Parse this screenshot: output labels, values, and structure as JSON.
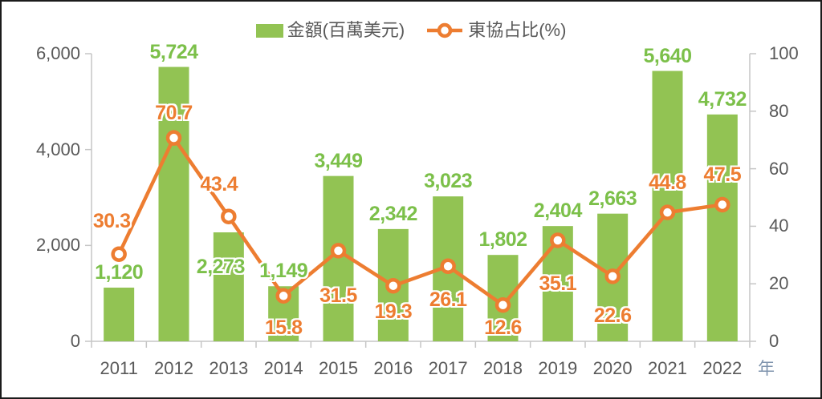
{
  "chart_data": {
    "type": "combo-bar-line",
    "title": "",
    "categories": [
      "2011",
      "2012",
      "2013",
      "2014",
      "2015",
      "2016",
      "2017",
      "2018",
      "2019",
      "2020",
      "2021",
      "2022"
    ],
    "series": [
      {
        "name": "金額(百萬美元)",
        "type": "bar",
        "axis": "left",
        "values": [
          1120,
          5724,
          2273,
          1149,
          3449,
          2342,
          3023,
          1802,
          2404,
          2663,
          5640,
          4732
        ],
        "labels": [
          "1,120",
          "5,724",
          "2,273",
          "1,149",
          "3,449",
          "2,342",
          "3,023",
          "1,802",
          "2,404",
          "2,663",
          "5,640",
          "4,732"
        ]
      },
      {
        "name": "東協占比(%)",
        "type": "line",
        "axis": "right",
        "values": [
          30.3,
          70.7,
          43.4,
          15.8,
          31.5,
          19.3,
          26.1,
          12.6,
          35.1,
          22.6,
          44.8,
          47.5
        ],
        "labels": [
          "30.3",
          "70.7",
          "43.4",
          "15.8",
          "31.5",
          "19.3",
          "26.1",
          "12.6",
          "35.1",
          "22.6",
          "44.8",
          "47.5"
        ]
      }
    ],
    "left_axis": {
      "min": 0,
      "max": 6000,
      "tick_values": [
        0,
        2000,
        4000,
        6000
      ],
      "tick_labels": [
        "0",
        "2,000",
        "4,000",
        "6,000"
      ]
    },
    "right_axis": {
      "min": 0,
      "max": 100,
      "tick_values": [
        0,
        20,
        40,
        60,
        80,
        100
      ],
      "tick_labels": [
        "0",
        "20",
        "40",
        "60",
        "80",
        "100"
      ]
    },
    "x_axis_unit_label": "年",
    "legend_position": "top-center",
    "grid": false,
    "label_layout": {
      "bar_dx": [
        0,
        0,
        -10,
        0,
        0,
        0,
        0,
        0,
        0,
        0,
        0,
        0
      ],
      "bar_dy": [
        0,
        0,
        62,
        0,
        0,
        0,
        0,
        0,
        0,
        0,
        0,
        0
      ],
      "pct_dx": [
        -9,
        0,
        -12,
        0,
        0,
        0,
        0,
        0,
        0,
        0,
        0,
        0
      ],
      "pct_dy": [
        -28,
        -18,
        -27,
        27,
        43,
        19,
        29,
        15,
        41,
        36,
        -24,
        -24
      ]
    }
  },
  "colors": {
    "bar": "#92c353",
    "bar_label": "#7cc04a",
    "line": "#ed7d31",
    "line_label": "#ed7d31",
    "marker_fill": "#ffffff",
    "axis_text": "#595959",
    "axis_line": "#c6c6c6",
    "x_unit": "#7e93ad",
    "frame_border": "#1b1b1b",
    "background": "#ffffff"
  }
}
